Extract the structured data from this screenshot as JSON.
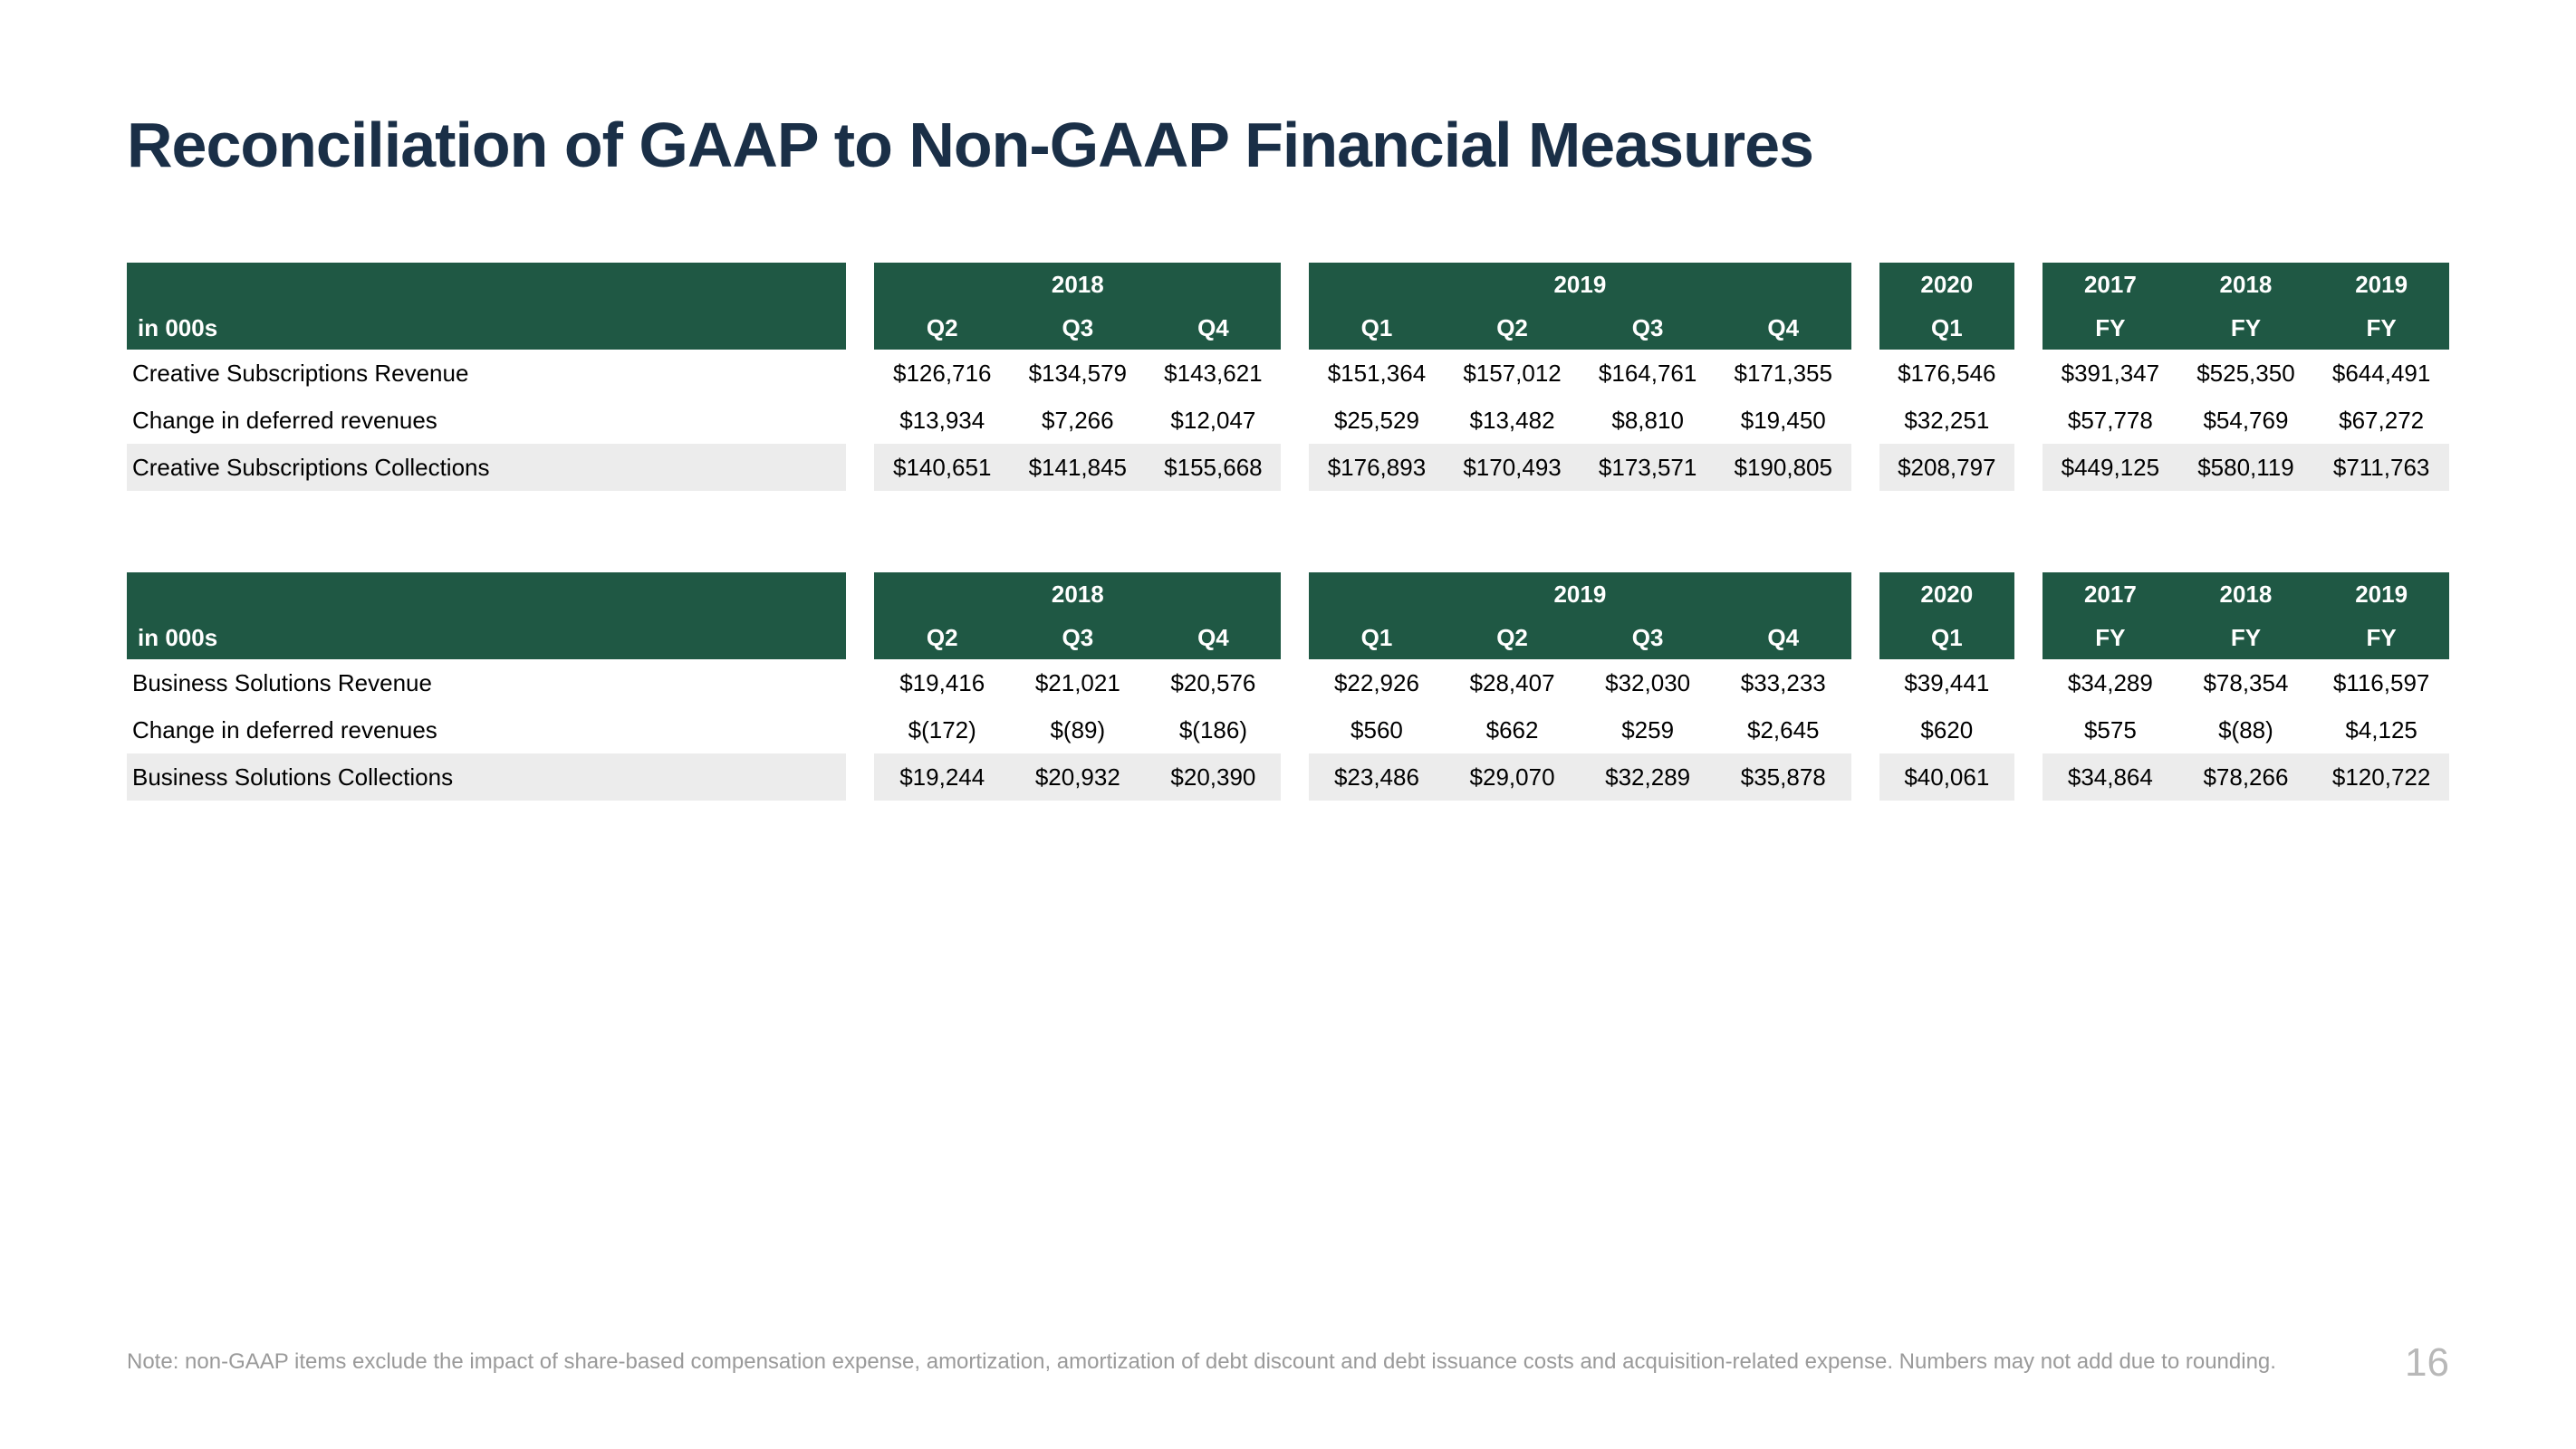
{
  "title": "Reconciliation of GAAP to Non-GAAP Financial Measures",
  "unitsLabel": "in 000s",
  "colors": {
    "title": "#1a2f47",
    "headerBg": "#1f5844",
    "headerText": "#ffffff",
    "rowShade": "#ececec",
    "bodyText": "#000000",
    "footnote": "#9a9a9a",
    "pageNum": "#b8b8b8",
    "pageBg": "#ffffff"
  },
  "groups": [
    {
      "year": "2018",
      "cols": [
        "Q2",
        "Q3",
        "Q4"
      ]
    },
    {
      "year": "2019",
      "cols": [
        "Q1",
        "Q2",
        "Q3",
        "Q4"
      ]
    },
    {
      "year": "2020",
      "cols": [
        "Q1"
      ]
    },
    {
      "year": "",
      "fyYears": [
        "2017",
        "2018",
        "2019"
      ],
      "cols": [
        "FY",
        "FY",
        "FY"
      ]
    }
  ],
  "tables": [
    {
      "rows": [
        {
          "label": "Creative Subscriptions Revenue",
          "shade": false,
          "values": [
            "$126,716",
            "$134,579",
            "$143,621",
            "$151,364",
            "$157,012",
            "$164,761",
            "$171,355",
            "$176,546",
            "$391,347",
            "$525,350",
            "$644,491"
          ]
        },
        {
          "label": "Change in deferred revenues",
          "shade": false,
          "values": [
            "$13,934",
            "$7,266",
            "$12,047",
            "$25,529",
            "$13,482",
            "$8,810",
            "$19,450",
            "$32,251",
            "$57,778",
            "$54,769",
            "$67,272"
          ]
        },
        {
          "label": "Creative Subscriptions Collections",
          "shade": true,
          "values": [
            "$140,651",
            "$141,845",
            "$155,668",
            "$176,893",
            "$170,493",
            "$173,571",
            "$190,805",
            "$208,797",
            "$449,125",
            "$580,119",
            "$711,763"
          ]
        }
      ]
    },
    {
      "rows": [
        {
          "label": "Business Solutions Revenue",
          "shade": false,
          "values": [
            "$19,416",
            "$21,021",
            "$20,576",
            "$22,926",
            "$28,407",
            "$32,030",
            "$33,233",
            "$39,441",
            "$34,289",
            "$78,354",
            "$116,597"
          ]
        },
        {
          "label": "Change in deferred revenues",
          "shade": false,
          "values": [
            "$(172)",
            "$(89)",
            "$(186)",
            "$560",
            "$662",
            "$259",
            "$2,645",
            "$620",
            "$575",
            "$(88)",
            "$4,125"
          ]
        },
        {
          "label": "Business Solutions Collections",
          "shade": true,
          "values": [
            "$19,244",
            "$20,932",
            "$20,390",
            "$23,486",
            "$29,070",
            "$32,289",
            "$35,878",
            "$40,061",
            "$34,864",
            "$78,266",
            "$120,722"
          ]
        }
      ]
    }
  ],
  "footnote": "Note: non-GAAP items exclude the impact of share-based compensation expense, amortization, amortization of debt discount and debt issuance costs and acquisition-related expense. Numbers may not add due to rounding.",
  "pageNumber": "16"
}
